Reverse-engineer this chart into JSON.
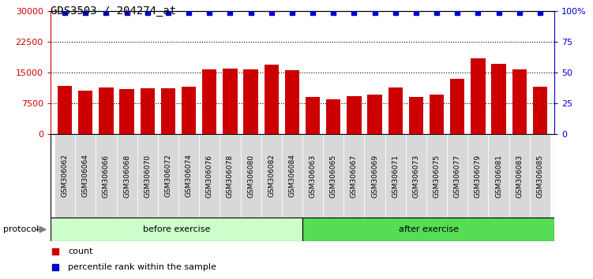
{
  "title": "GDS3503 / 204274_at",
  "categories": [
    "GSM306062",
    "GSM306064",
    "GSM306066",
    "GSM306068",
    "GSM306070",
    "GSM306072",
    "GSM306074",
    "GSM306076",
    "GSM306078",
    "GSM306080",
    "GSM306082",
    "GSM306084",
    "GSM306063",
    "GSM306065",
    "GSM306067",
    "GSM306069",
    "GSM306071",
    "GSM306073",
    "GSM306075",
    "GSM306077",
    "GSM306079",
    "GSM306081",
    "GSM306083",
    "GSM306085"
  ],
  "bar_values": [
    11800,
    10500,
    11300,
    10900,
    11100,
    11200,
    11600,
    15800,
    16000,
    15700,
    17000,
    15600,
    9000,
    8500,
    9300,
    9700,
    11300,
    9000,
    9600,
    13500,
    18500,
    17200,
    15700,
    11500
  ],
  "bar_color": "#cc0000",
  "percentile_color": "#0000cc",
  "before_count": 12,
  "after_count": 12,
  "before_label": "before exercise",
  "after_label": "after exercise",
  "protocol_label": "protocol",
  "before_color": "#ccffcc",
  "after_color": "#55dd55",
  "ylim_left": [
    0,
    30000
  ],
  "ylim_right": [
    0,
    100
  ],
  "yticks_left": [
    0,
    7500,
    15000,
    22500,
    30000
  ],
  "yticks_right": [
    0,
    25,
    50,
    75,
    100
  ],
  "ytick_labels_left": [
    "0",
    "7500",
    "15000",
    "22500",
    "30000"
  ],
  "ytick_labels_right": [
    "0",
    "25",
    "50",
    "75",
    "100%"
  ],
  "tick_bg_color": "#d8d8d8",
  "fig_width": 7.51,
  "fig_height": 3.54,
  "dpi": 100
}
